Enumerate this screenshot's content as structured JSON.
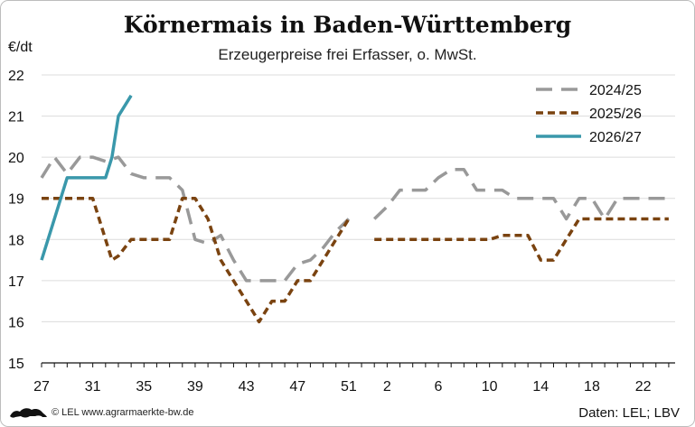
{
  "chart_data": {
    "type": "line",
    "title": "Körnermais in Baden-Württemberg",
    "subtitle": "Erzeugerpreise frei Erfasser, o. MwSt.",
    "ylabel": "€/dt",
    "ylim": [
      15,
      22
    ],
    "yticks": [
      15,
      16,
      17,
      18,
      19,
      20,
      21,
      22
    ],
    "xticks": [
      "27",
      "31",
      "35",
      "39",
      "43",
      "47",
      "51",
      "2",
      "6",
      "10",
      "14",
      "18",
      "22"
    ],
    "x_unit": "calendar week, weeks 27–52 then 1–26",
    "grid": "horizontal",
    "legend_position": "top-right",
    "series": [
      {
        "name": "2024/25",
        "color": "#999999",
        "style": "long-dash",
        "segments": [
          [
            [
              27,
              19.5
            ],
            [
              28,
              20.0
            ],
            [
              29,
              19.6
            ],
            [
              30,
              20.0
            ],
            [
              31,
              20.0
            ],
            [
              32,
              19.9
            ],
            [
              33,
              20.0
            ],
            [
              34,
              19.6
            ],
            [
              35,
              19.5
            ],
            [
              36,
              19.5
            ],
            [
              37,
              19.5
            ],
            [
              38,
              19.2
            ],
            [
              39,
              18.0
            ],
            [
              40,
              17.9
            ],
            [
              41,
              18.1
            ],
            [
              42,
              17.5
            ],
            [
              43,
              17.0
            ],
            [
              44,
              17.0
            ],
            [
              45,
              17.0
            ],
            [
              46,
              17.0
            ],
            [
              47,
              17.4
            ],
            [
              48,
              17.5
            ],
            [
              49,
              17.8
            ],
            [
              50,
              18.2
            ],
            [
              51,
              18.5
            ]
          ],
          [
            [
              53,
              18.5
            ],
            [
              54,
              18.8
            ],
            [
              55,
              19.2
            ],
            [
              56,
              19.2
            ],
            [
              57,
              19.2
            ],
            [
              58,
              19.5
            ],
            [
              59,
              19.7
            ],
            [
              60,
              19.7
            ],
            [
              61,
              19.2
            ],
            [
              62,
              19.2
            ],
            [
              63,
              19.2
            ],
            [
              64,
              19.0
            ],
            [
              65,
              19.0
            ],
            [
              66,
              19.0
            ],
            [
              67,
              19.0
            ],
            [
              68,
              18.5
            ],
            [
              69,
              19.0
            ],
            [
              70,
              19.0
            ],
            [
              71,
              18.5
            ],
            [
              72,
              19.0
            ],
            [
              73,
              19.0
            ],
            [
              74,
              19.0
            ],
            [
              75,
              19.0
            ],
            [
              76,
              19.0
            ]
          ]
        ]
      },
      {
        "name": "2025/26",
        "color": "#7a4310",
        "style": "short-dash",
        "segments": [
          [
            [
              27,
              19.0
            ],
            [
              28,
              19.0
            ],
            [
              29,
              19.0
            ],
            [
              30,
              19.0
            ],
            [
              31,
              19.0
            ],
            [
              32,
              18.0
            ],
            [
              32.5,
              17.5
            ],
            [
              33,
              17.6
            ],
            [
              34,
              18.0
            ],
            [
              35,
              18.0
            ],
            [
              36,
              18.0
            ],
            [
              37,
              18.0
            ],
            [
              38,
              19.0
            ],
            [
              39,
              19.0
            ],
            [
              40,
              18.5
            ],
            [
              41,
              17.5
            ],
            [
              42,
              17.0
            ],
            [
              43,
              16.5
            ],
            [
              44,
              16.0
            ],
            [
              45,
              16.5
            ],
            [
              46,
              16.5
            ],
            [
              47,
              17.0
            ],
            [
              48,
              17.0
            ],
            [
              49,
              17.5
            ],
            [
              50,
              18.0
            ],
            [
              51,
              18.5
            ]
          ],
          [
            [
              53,
              18.0
            ],
            [
              54,
              18.0
            ],
            [
              55,
              18.0
            ],
            [
              56,
              18.0
            ],
            [
              57,
              18.0
            ],
            [
              58,
              18.0
            ],
            [
              59,
              18.0
            ],
            [
              60,
              18.0
            ],
            [
              61,
              18.0
            ],
            [
              62,
              18.0
            ],
            [
              63,
              18.1
            ],
            [
              64,
              18.1
            ],
            [
              65,
              18.1
            ],
            [
              66,
              17.5
            ],
            [
              67,
              17.5
            ],
            [
              68,
              18.0
            ],
            [
              69,
              18.5
            ],
            [
              70,
              18.5
            ],
            [
              71,
              18.5
            ],
            [
              72,
              18.5
            ],
            [
              73,
              18.5
            ],
            [
              74,
              18.5
            ],
            [
              75,
              18.5
            ],
            [
              76,
              18.5
            ]
          ]
        ]
      },
      {
        "name": "2026/27",
        "color": "#3a98ab",
        "style": "solid",
        "segments": [
          [
            [
              27,
              17.5
            ],
            [
              28,
              18.5
            ],
            [
              29,
              19.5
            ],
            [
              30,
              19.5
            ],
            [
              31,
              19.5
            ],
            [
              32,
              19.5
            ],
            [
              32.5,
              20.0
            ],
            [
              33,
              21.0
            ],
            [
              34,
              21.5
            ]
          ]
        ]
      }
    ]
  },
  "footer": {
    "source": "Daten: LEL; LBV",
    "credit": "© LEL www.agrarmaerkte-bw.de"
  }
}
